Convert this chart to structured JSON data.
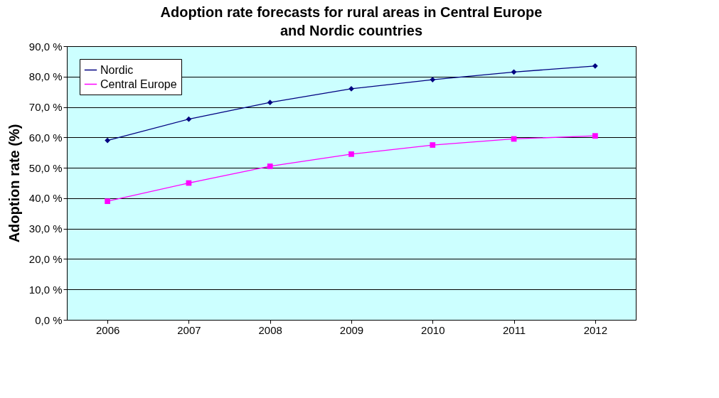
{
  "chart_data": {
    "type": "line",
    "title": "Adoption rate forecasts for rural areas in Central Europe and Nordic countries",
    "ylabel": "Adoption rate (%)",
    "categories": [
      "2006",
      "2007",
      "2008",
      "2009",
      "2010",
      "2011",
      "2012"
    ],
    "series": [
      {
        "name": "Nordic",
        "color": "#000080",
        "marker": "diamond",
        "values": [
          59,
          66,
          71.5,
          76,
          79,
          81.5,
          83.5
        ]
      },
      {
        "name": "Central Europe",
        "color": "#ff00ff",
        "marker": "square",
        "values": [
          39,
          45,
          50.5,
          54.5,
          57.5,
          59.5,
          60.5
        ]
      }
    ],
    "ylim": [
      0,
      90
    ],
    "yticks": [
      {
        "value": 0,
        "label": "0,0 %"
      },
      {
        "value": 10,
        "label": "10,0 %"
      },
      {
        "value": 20,
        "label": "20,0 %"
      },
      {
        "value": 30,
        "label": "30,0 %"
      },
      {
        "value": 40,
        "label": "40,0 %"
      },
      {
        "value": 50,
        "label": "50,0 %"
      },
      {
        "value": 60,
        "label": "60,0 %"
      },
      {
        "value": 70,
        "label": "70,0 %"
      },
      {
        "value": 80,
        "label": "80,0 %"
      },
      {
        "value": 90,
        "label": "90,0 %"
      }
    ],
    "grid": "y",
    "legend": "top left",
    "line_style": "solid"
  }
}
